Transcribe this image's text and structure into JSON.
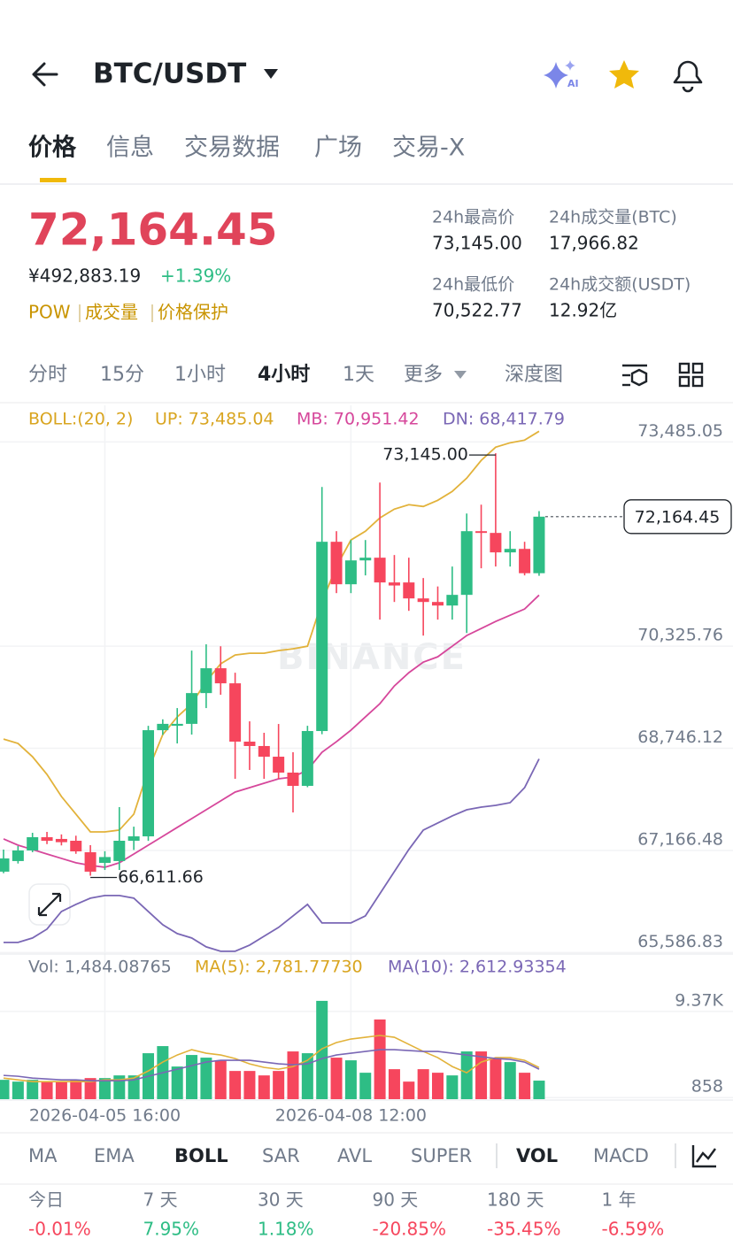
{
  "header": {
    "title": "BTC/USDT"
  },
  "tabs": [
    "价格",
    "信息",
    "交易数据",
    "广场",
    "交易-X"
  ],
  "price": {
    "last": "72,164.45",
    "cny": "¥492,883.19",
    "change": "+1.39%",
    "tags": [
      "POW",
      "成交量",
      "价格保护"
    ]
  },
  "stats": [
    {
      "label": "24h最高价",
      "value": "73,145.00"
    },
    {
      "label": "24h成交量(BTC)",
      "value": "17,966.82"
    },
    {
      "label": "24h最低价",
      "value": "70,522.77"
    },
    {
      "label": "24h成交额(USDT)",
      "value": "12.92亿"
    }
  ],
  "intervals": [
    "分时",
    "15分",
    "1小时",
    "4小时",
    "1天",
    "更多",
    "深度图"
  ],
  "indicators": [
    "MA",
    "EMA",
    "BOLL",
    "SAR",
    "AVL",
    "SUPER",
    "VOL",
    "MACD"
  ],
  "performance": [
    {
      "label": "今日",
      "value": "-0.01%"
    },
    {
      "label": "7 天",
      "value": "7.95%"
    },
    {
      "label": "30 天",
      "value": "1.18%"
    },
    {
      "label": "90 天",
      "value": "-20.85%"
    },
    {
      "label": "180 天",
      "value": "-35.45%"
    },
    {
      "label": "1 年",
      "value": "-6.59%"
    }
  ],
  "chart_data": [
    {
      "type": "candlestick",
      "watermark": "BINANCE",
      "legend": [
        {
          "text": "BOLL:(20, 2)",
          "color": "#d9a520"
        },
        {
          "text": "UP: 73,485.04",
          "color": "#d9a520"
        },
        {
          "text": "MB: 70,951.42",
          "color": "#d6479b"
        },
        {
          "text": "DN: 68,417.79",
          "color": "#7a67b5"
        }
      ],
      "categories": [
        null,
        null,
        null,
        null,
        null,
        null,
        null,
        "2026-04-05 16:00",
        null,
        null,
        null,
        null,
        null,
        null,
        null,
        null,
        null,
        null,
        null,
        null,
        null,
        null,
        null,
        null,
        "2026-04-08 12:00",
        null,
        null,
        null,
        null,
        null,
        null,
        null,
        null,
        null,
        null,
        null,
        null,
        null
      ],
      "open": [
        66674,
        66838,
        67002,
        67207,
        67180,
        67152,
        66975,
        66810,
        66838,
        67152,
        67220,
        68862,
        68930,
        68960,
        69436,
        69820,
        69587,
        68685,
        68617,
        68452,
        68206,
        68001,
        68849,
        71776,
        71119,
        71488,
        71530,
        71147,
        71147,
        70900,
        70845,
        70790,
        70955,
        71940,
        71913,
        71612,
        71666,
        71290
      ],
      "high": [
        67015,
        67070,
        67275,
        67289,
        67250,
        67230,
        67084,
        66990,
        67672,
        67370,
        68930,
        69030,
        69204,
        70093,
        70190,
        70160,
        69751,
        68999,
        68822,
        68958,
        68521,
        68930,
        72623,
        71940,
        71803,
        71803,
        72692,
        71571,
        71530,
        71215,
        71085,
        71393,
        72213,
        72350,
        73145,
        71940,
        71776,
        72250
      ],
      "low": [
        66650,
        66800,
        66975,
        67100,
        67080,
        66950,
        66611.66,
        66700,
        66700,
        67010,
        67150,
        68790,
        68657,
        68794,
        69204,
        69410,
        68110,
        68247,
        68110,
        68110,
        67590,
        67980,
        68800,
        70982,
        70982,
        71256,
        70572,
        70845,
        70708,
        70325,
        70572,
        70572,
        70366,
        71366,
        71393,
        71393,
        71256,
        71250
      ],
      "close": [
        66879,
        67002,
        67207,
        67152,
        67130,
        66988,
        66674,
        66900,
        67152,
        67220,
        68862,
        68960,
        68960,
        69436,
        69820,
        69587,
        68685,
        68617,
        68452,
        68206,
        68001,
        68849,
        71776,
        71119,
        71488,
        71530,
        71147,
        71100,
        70900,
        70845,
        70790,
        70955,
        71940,
        71913,
        71612,
        71666,
        71290,
        72164.45
      ],
      "up_color": "#2ebd85",
      "down_color": "#f6465d",
      "bands": [
        {
          "color": "#e2b23a",
          "values": [
            68725,
            68657,
            68452,
            68178,
            67836,
            67563,
            67289,
            67289,
            67317,
            67563,
            68247,
            68794,
            69067,
            69272,
            69614,
            69888,
            70025,
            70052,
            70052,
            70093,
            70120,
            70161,
            70845,
            71392,
            71803,
            71939,
            72145,
            72281,
            72350,
            72322,
            72418,
            72555,
            72760,
            73034,
            73239,
            73307,
            73348,
            73485.04
          ]
        },
        {
          "color": "#d6479b",
          "values": [
            67180,
            67084,
            67016,
            66947,
            66879,
            66811,
            66770,
            66742,
            66811,
            66947,
            67084,
            67221,
            67358,
            67494,
            67631,
            67768,
            67905,
            67973,
            68042,
            68110,
            68137,
            68247,
            68520,
            68684,
            68862,
            69067,
            69272,
            69546,
            69751,
            69915,
            69997,
            70161,
            70326,
            70435,
            70544,
            70640,
            70736,
            70951.42
          ]
        },
        {
          "color": "#7a67b5",
          "values": [
            65580,
            65580,
            65648,
            65785,
            66058,
            66168,
            66264,
            66305,
            66305,
            66264,
            66058,
            65853,
            65716,
            65648,
            65511,
            65443,
            65443,
            65538,
            65675,
            65812,
            65990,
            66168,
            65881,
            65881,
            65881,
            65990,
            66332,
            66674,
            67016,
            67317,
            67426,
            67536,
            67631,
            67672,
            67700,
            67741,
            67973,
            68417.79
          ]
        }
      ],
      "high_label": "73,145.00",
      "low_label": "66,611.66",
      "last_label": "72,164.45",
      "ylim": [
        65400,
        73900
      ],
      "yticks": [
        {
          "value": 73485.05,
          "label": "73,485.05"
        },
        {
          "value": 70325.76,
          "label": "70,325.76"
        },
        {
          "value": 68746.12,
          "label": "68,746.12"
        },
        {
          "value": 67166.48,
          "label": "67,166.48"
        },
        {
          "value": 65586.83,
          "label": "65,586.83"
        }
      ],
      "grid": true
    },
    {
      "type": "bar",
      "legend": [
        {
          "text": "Vol: 1,484.08765",
          "color": "#707a8a"
        },
        {
          "text": "MA(5): 2,781.77730",
          "color": "#d9a520"
        },
        {
          "text": "MA(10): 2,612.93354",
          "color": "#7a67b5"
        }
      ],
      "values": [
        1562,
        1386,
        1562,
        1386,
        1386,
        1562,
        1737,
        1737,
        2000,
        2000,
        4194,
        4896,
        2878,
        4019,
        3756,
        3492,
        2439,
        2439,
        2000,
        2439,
        4370,
        4194,
        9370,
        3756,
        3492,
        2264,
        7529,
        2615,
        1386,
        2615,
        2264,
        2000,
        4370,
        4370,
        3756,
        3317,
        2264,
        1484.08765
      ],
      "series": [
        {
          "color": "#e2b23a",
          "values": [
            1737,
            1562,
            1386,
            1386,
            1386,
            1386,
            1386,
            1562,
            1562,
            1737,
            2439,
            3317,
            4019,
            4545,
            4194,
            4019,
            3668,
            3141,
            2790,
            2615,
            2878,
            3492,
            4633,
            5247,
            5598,
            5773,
            5949,
            5773,
            5071,
            4370,
            3756,
            2878,
            2264,
            3317,
            3756,
            3756,
            3492,
            2781.7773
          ]
        },
        {
          "color": "#7a67b5",
          "values": [
            2001,
            1913,
            1737,
            1650,
            1562,
            1562,
            1474,
            1474,
            1474,
            1562,
            1913,
            2264,
            2615,
            2966,
            3317,
            3492,
            3492,
            3492,
            3317,
            3141,
            3054,
            3141,
            3668,
            4019,
            4194,
            4370,
            4545,
            4545,
            4457,
            4370,
            4370,
            4194,
            4019,
            3843,
            3668,
            3580,
            3317,
            2612.93354
          ]
        }
      ],
      "ylim": [
        0,
        10500
      ],
      "yticks": [
        {
          "value": 9370,
          "label": "9.37K"
        },
        858
      ]
    }
  ]
}
